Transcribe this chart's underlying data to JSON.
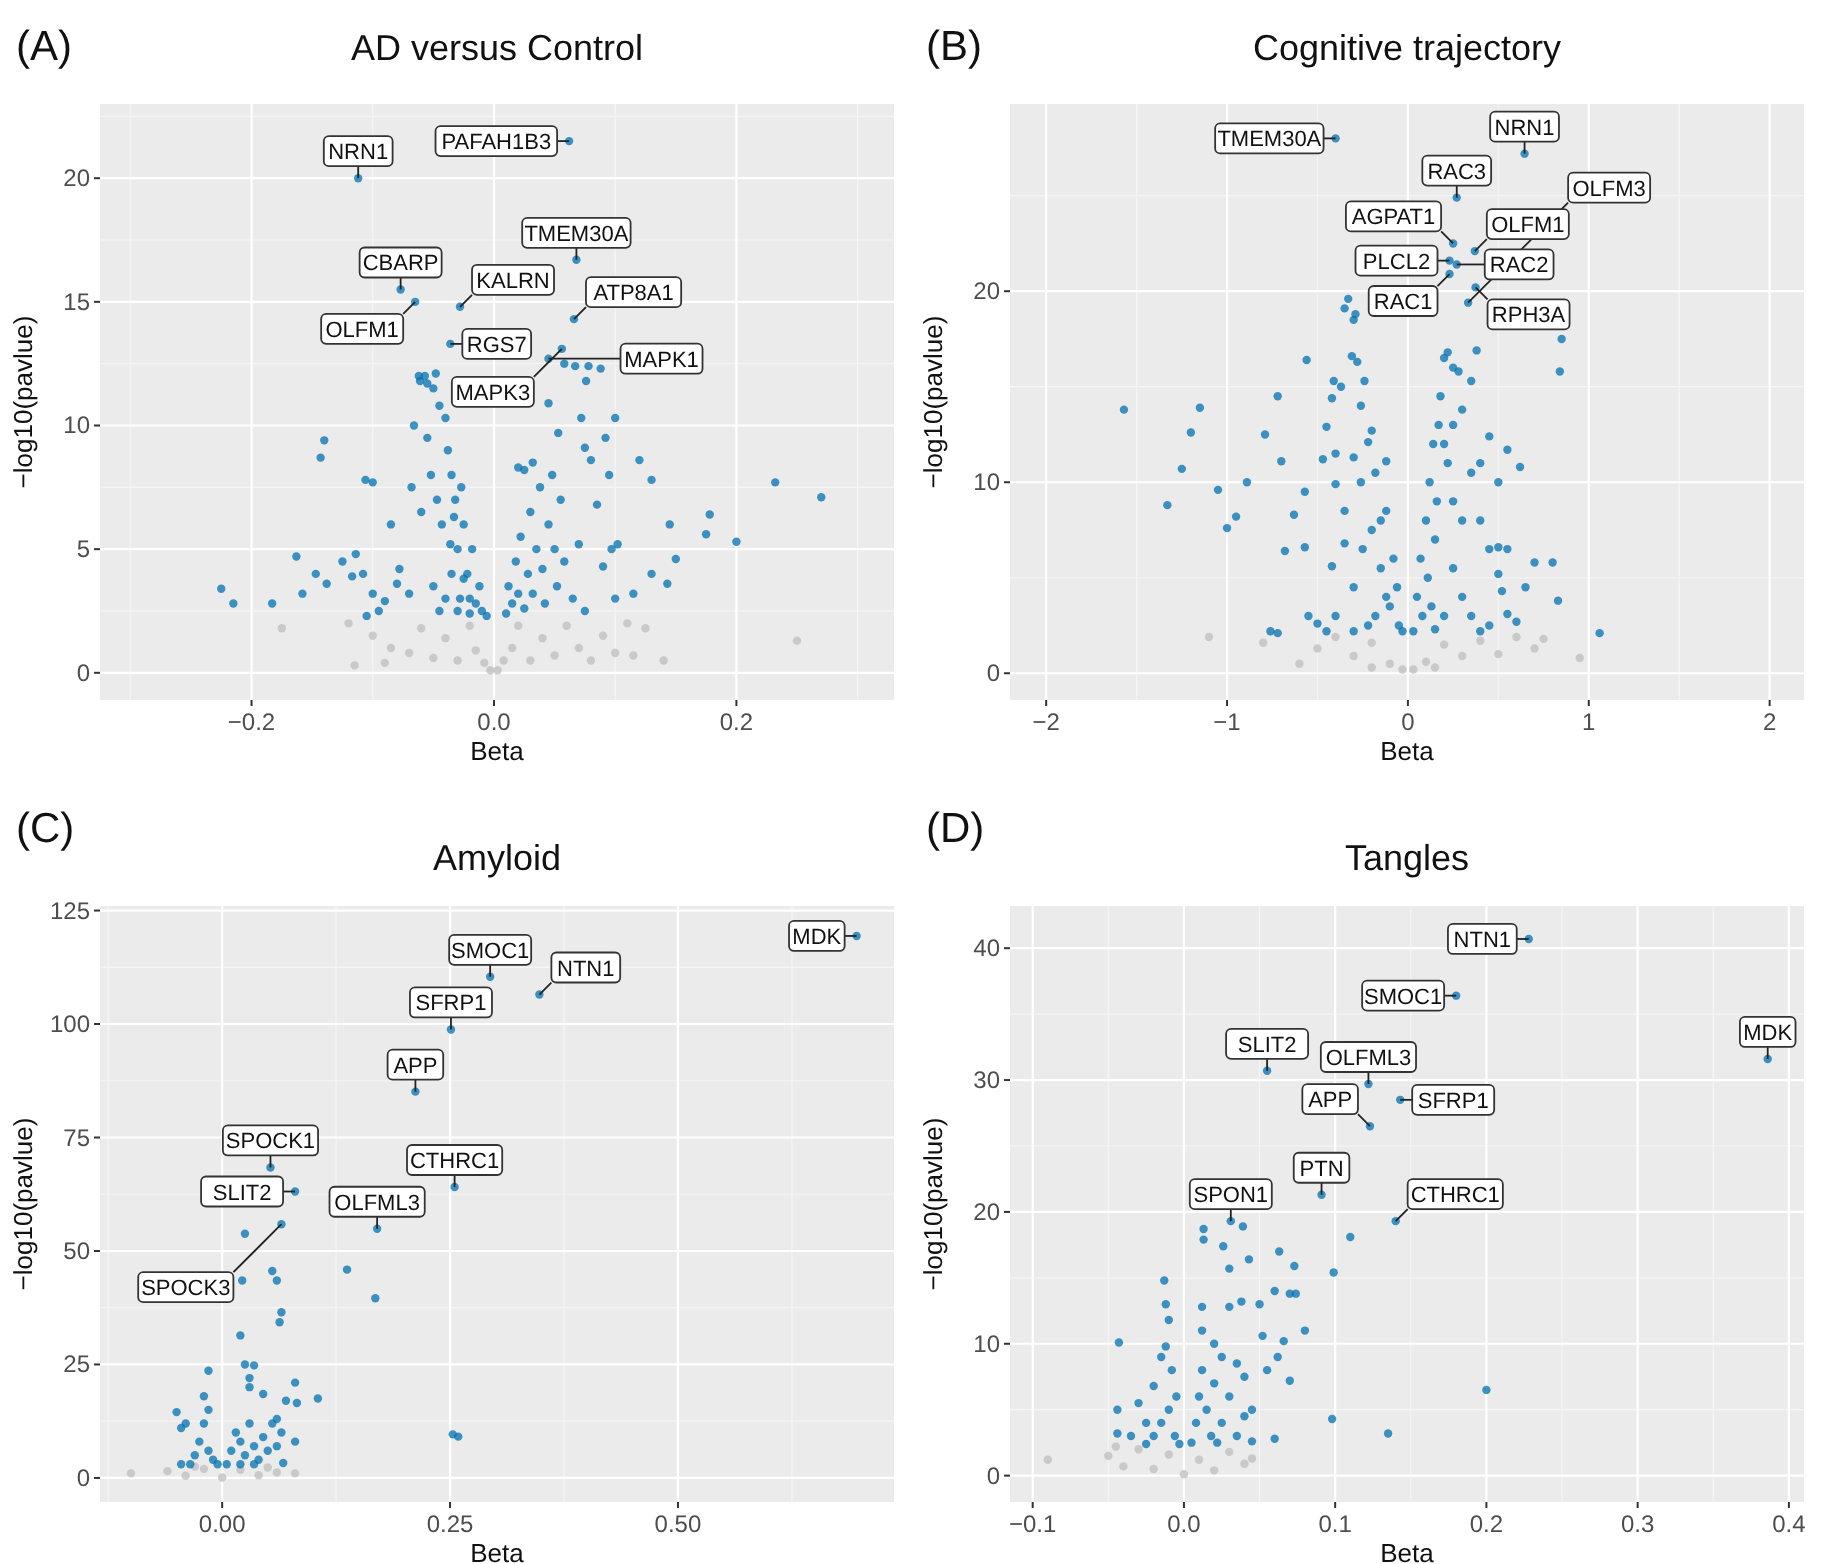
{
  "chart_data": [
    {
      "type": "scatter",
      "title": "AD versus Control",
      "xlabel": "Beta",
      "ylabel": "−log10(pavlue)",
      "grid": true,
      "marker": "circle",
      "xlim": [
        -0.325,
        0.33
      ],
      "ylim": [
        -1.1,
        23
      ],
      "xticks": [
        {
          "value": -0.2,
          "label": "−0.2"
        },
        {
          "value": 0,
          "label": "0.0"
        },
        {
          "value": 0.2,
          "label": "0.2"
        }
      ],
      "yticks": [
        0,
        5,
        10,
        15,
        20
      ],
      "annotations": [
        "(A)",
        {
          "text": "PAFAH1B3",
          "x": 0.062,
          "y": 21.5
        },
        {
          "text": "NRN1",
          "x": -0.112,
          "y": 20.0
        },
        {
          "text": "TMEM30A",
          "x": 0.068,
          "y": 16.7
        },
        {
          "text": "CBARP",
          "x": -0.077,
          "y": 15.5
        },
        {
          "text": "OLFM1",
          "x": -0.065,
          "y": 15.0
        },
        {
          "text": "KALRN",
          "x": -0.028,
          "y": 14.8
        },
        {
          "text": "ATP8A1",
          "x": 0.066,
          "y": 14.3
        },
        {
          "text": "RGS7",
          "x": -0.036,
          "y": 13.3
        },
        {
          "text": "MAPK3",
          "x": 0.056,
          "y": 13.1
        },
        {
          "text": "MAPK1",
          "x": 0.045,
          "y": 12.7
        }
      ],
      "series": [
        {
          "color": "#bebebe",
          "x": [
            -0.1,
            -0.085,
            -0.07,
            -0.06,
            -0.05,
            -0.04,
            -0.03,
            -0.02,
            -0.015,
            -0.008,
            -0.003,
            0.003,
            0.008,
            0.015,
            0.02,
            0.03,
            0.04,
            0.05,
            0.06,
            0.07,
            0.08,
            0.09,
            0.1,
            0.11,
            0.125,
            0.14,
            0.25,
            0.115,
            -0.12,
            -0.175,
            -0.115,
            -0.09
          ],
          "values": [
            1.5,
            1.0,
            0.8,
            1.8,
            0.6,
            1.4,
            0.5,
            1.9,
            0.9,
            0.4,
            0.1,
            0.1,
            0.5,
            1.0,
            1.9,
            0.5,
            1.4,
            0.7,
            1.9,
            1.0,
            0.5,
            1.5,
            0.8,
            2.0,
            1.8,
            0.5,
            1.3,
            0.7,
            2.0,
            1.8,
            0.3,
            0.4
          ]
        },
        {
          "color": "#0072b2",
          "x": [
            0.062,
            -0.112,
            0.068,
            -0.077,
            -0.065,
            -0.028,
            0.066,
            -0.036,
            0.056,
            0.045,
            -0.225,
            -0.215,
            -0.183,
            -0.163,
            -0.158,
            -0.147,
            -0.143,
            -0.14,
            -0.138,
            -0.125,
            -0.117,
            -0.114,
            -0.108,
            -0.106,
            -0.1,
            -0.105,
            -0.1,
            -0.095,
            -0.09,
            -0.085,
            -0.08,
            -0.078,
            -0.07,
            -0.068,
            -0.066,
            -0.062,
            -0.061,
            -0.057,
            -0.055,
            -0.05,
            -0.048,
            -0.06,
            -0.055,
            -0.052,
            -0.045,
            -0.04,
            -0.047,
            -0.043,
            -0.038,
            -0.035,
            -0.032,
            -0.03,
            -0.028,
            -0.025,
            -0.022,
            -0.02,
            -0.018,
            -0.015,
            -0.012,
            -0.01,
            -0.035,
            -0.04,
            -0.045,
            -0.05,
            -0.03,
            -0.025,
            -0.02,
            -0.027,
            -0.033,
            -0.036,
            -0.006,
            0.01,
            0.012,
            0.015,
            0.018,
            0.02,
            0.022,
            0.025,
            0.028,
            0.03,
            0.032,
            0.035,
            0.038,
            0.04,
            0.042,
            0.045,
            0.048,
            0.05,
            0.052,
            0.055,
            0.058,
            0.02,
            0.025,
            0.032,
            0.045,
            0.053,
            0.058,
            0.067,
            0.078,
            0.088,
            0.076,
            0.072,
            0.075,
            0.08,
            0.092,
            0.1,
            0.095,
            0.12,
            0.13,
            0.085,
            0.097,
            0.102,
            0.09,
            0.1,
            0.115,
            0.13,
            0.145,
            0.15,
            0.143,
            0.175,
            0.178,
            0.2,
            0.232,
            0.27,
            0.07,
            0.065,
            0.075
          ],
          "values": [
            21.5,
            20.0,
            16.7,
            15.5,
            15.0,
            14.8,
            14.3,
            13.3,
            13.1,
            12.7,
            3.4,
            2.8,
            2.8,
            4.7,
            3.2,
            4.0,
            8.7,
            9.4,
            3.6,
            4.5,
            3.9,
            4.8,
            4.0,
            7.8,
            7.7,
            2.3,
            3.2,
            2.5,
            2.9,
            6.0,
            3.6,
            4.2,
            3.2,
            7.5,
            10.0,
            12.0,
            11.8,
            12.0,
            11.7,
            11.5,
            12.1,
            6.5,
            9.5,
            8.0,
            10.8,
            10.3,
            7.0,
            6.0,
            9.0,
            8.0,
            7.0,
            5.0,
            3.0,
            6.0,
            4.0,
            3.0,
            5.0,
            2.8,
            3.5,
            2.5,
            4.0,
            3.0,
            2.5,
            3.5,
            2.5,
            3.8,
            2.4,
            7.5,
            6.3,
            5.2,
            2.3,
            2.4,
            3.5,
            2.8,
            4.5,
            3.2,
            5.5,
            2.6,
            4.0,
            6.5,
            3.2,
            5.0,
            7.5,
            4.2,
            2.8,
            6.0,
            8.0,
            5.0,
            3.5,
            7.0,
            4.5,
            8.3,
            8.2,
            8.5,
            10.9,
            9.7,
            12.5,
            12.4,
            12.4,
            12.3,
            11.8,
            10.3,
            9.1,
            8.6,
            9.5,
            10.3,
            8.0,
            8.6,
            7.8,
            6.8,
            5.0,
            5.2,
            4.3,
            3.0,
            3.2,
            4.0,
            6.0,
            4.6,
            3.6,
            5.6,
            6.4,
            5.3,
            7.7,
            7.1,
            5.2,
            3.0,
            2.5
          ]
        }
      ]
    },
    {
      "type": "scatter",
      "title": "Cognitive trajectory",
      "xlabel": "Beta",
      "ylabel": "−log10(pavlue)",
      "grid": true,
      "marker": "circle",
      "xlim": [
        -2.2,
        2.19
      ],
      "ylim": [
        -1.4,
        29.8
      ],
      "xticks": [
        {
          "value": -2,
          "label": "−2"
        },
        {
          "value": -1,
          "label": "−1"
        },
        0,
        1,
        2
      ],
      "yticks": [
        0,
        10,
        20
      ],
      "annotations": [
        "(B)",
        {
          "text": "TMEM30A",
          "x": -0.4,
          "y": 28.0
        },
        {
          "text": "NRN1",
          "x": 0.645,
          "y": 27.2
        },
        {
          "text": "RAC3",
          "x": 0.27,
          "y": 24.9
        },
        {
          "text": "AGPAT1",
          "x": 0.25,
          "y": 22.5
        },
        {
          "text": "OLFM1",
          "x": 0.37,
          "y": 22.1
        },
        {
          "text": "PLCL2",
          "x": 0.23,
          "y": 21.6
        },
        {
          "text": "RAC2",
          "x": 0.27,
          "y": 21.4
        },
        {
          "text": "RAC1",
          "x": 0.23,
          "y": 20.9
        },
        {
          "text": "RPH3A",
          "x": 0.374,
          "y": 20.2
        },
        {
          "text": "OLFM3",
          "x": 0.333,
          "y": 19.4
        }
      ],
      "series": [
        {
          "color": "#bebebe",
          "x": [
            -1.1,
            -0.8,
            -0.6,
            -0.5,
            -0.4,
            -0.3,
            -0.2,
            -0.1,
            -0.03,
            0.03,
            0.1,
            0.2,
            0.3,
            0.4,
            0.5,
            0.6,
            0.7,
            0.75,
            0.95,
            -0.2,
            0.15
          ],
          "values": [
            1.9,
            1.6,
            0.5,
            1.3,
            1.9,
            0.9,
            1.6,
            0.5,
            0.2,
            0.2,
            0.6,
            1.5,
            0.9,
            1.7,
            1.0,
            1.9,
            1.3,
            1.8,
            0.8,
            0.3,
            0.3
          ]
        },
        {
          "color": "#0072b2",
          "x": [
            -0.4,
            0.645,
            0.27,
            0.25,
            0.37,
            0.23,
            0.27,
            0.23,
            0.374,
            0.333,
            -1.57,
            -1.15,
            -1.2,
            -1.25,
            -1.33,
            -1.05,
            -1.0,
            -0.95,
            -0.89,
            -0.79,
            -0.72,
            -0.7,
            -0.56,
            -0.68,
            -0.57,
            -0.63,
            -0.57,
            -0.47,
            -0.45,
            -0.42,
            -0.41,
            -0.37,
            -0.35,
            -0.33,
            -0.3,
            -0.29,
            -0.31,
            -0.28,
            -0.24,
            -0.26,
            -0.2,
            -0.22,
            -0.12,
            -0.4,
            -0.3,
            -0.26,
            -0.18,
            -0.12,
            -0.4,
            -0.35,
            -0.42,
            -0.4,
            -0.5,
            -0.55,
            -0.72,
            -0.76,
            -0.45,
            -0.3,
            -0.25,
            -0.2,
            -0.15,
            -0.1,
            -0.05,
            -0.08,
            -0.12,
            -0.18,
            -0.22,
            -0.3,
            -0.35,
            -0.15,
            -0.06,
            -0.03,
            0.03,
            0.05,
            0.07,
            0.08,
            0.1,
            0.11,
            0.12,
            0.13,
            0.14,
            0.15,
            0.16,
            0.18,
            0.17,
            0.2,
            0.22,
            0.25,
            0.28,
            0.3,
            0.35,
            0.38,
            0.22,
            0.25,
            0.3,
            0.35,
            0.4,
            0.45,
            0.55,
            0.62,
            0.5,
            0.4,
            0.45,
            0.5,
            0.55,
            0.5,
            0.52,
            0.55,
            0.65,
            0.7,
            0.8,
            0.83,
            0.6,
            0.84,
            0.85,
            1.06,
            0.3,
            0.35,
            0.45,
            0.25,
            0.2,
            0.15,
            0.4,
            0.2,
            0.25
          ],
          "values": [
            28.0,
            27.2,
            24.9,
            22.5,
            22.1,
            21.6,
            21.4,
            20.9,
            20.2,
            19.4,
            13.8,
            13.9,
            12.6,
            10.7,
            8.8,
            9.6,
            7.6,
            8.2,
            10.0,
            12.5,
            14.5,
            11.1,
            16.4,
            6.4,
            6.6,
            8.3,
            9.5,
            11.2,
            12.9,
            14.4,
            15.3,
            15.0,
            19.1,
            19.6,
            18.5,
            18.8,
            16.6,
            16.3,
            15.3,
            14.0,
            12.7,
            12.1,
            11.1,
            11.5,
            11.3,
            10.0,
            10.5,
            8.5,
            9.9,
            8.5,
            5.6,
            3.0,
            2.6,
            3.0,
            2.1,
            2.2,
            2.2,
            4.5,
            6.5,
            7.5,
            5.5,
            3.5,
            2.5,
            6.0,
            4.0,
            3.0,
            2.5,
            2.2,
            6.8,
            8.0,
            4.5,
            2.2,
            2.2,
            4.0,
            6.0,
            3.0,
            8.0,
            5.0,
            10.0,
            3.5,
            12.0,
            7.0,
            9.0,
            14.5,
            13.0,
            16.5,
            16.8,
            16.0,
            15.8,
            13.8,
            15.3,
            16.9,
            11.0,
            9.0,
            8.0,
            10.5,
            11.0,
            12.4,
            11.7,
            10.8,
            10.0,
            8.0,
            6.5,
            6.6,
            6.5,
            5.2,
            4.3,
            3.1,
            4.5,
            5.8,
            5.8,
            3.8,
            2.7,
            15.8,
            17.5,
            2.1,
            4.0,
            3.0,
            2.5,
            5.5,
            3.0,
            2.3,
            2.2,
            12.0,
            13.0
          ]
        }
      ]
    },
    {
      "type": "scatter",
      "title": "Amyloid",
      "xlabel": "Beta",
      "ylabel": "−log10(pavlue)",
      "grid": true,
      "marker": "circle",
      "xlim": [
        -0.134,
        0.737
      ],
      "ylim": [
        -5.3,
        126
      ],
      "xticks": [
        {
          "value": 0,
          "label": "0.00"
        },
        {
          "value": 0.25,
          "label": "0.25"
        },
        {
          "value": 0.5,
          "label": "0.50"
        }
      ],
      "yticks": [
        0,
        25,
        50,
        75,
        100,
        125
      ],
      "annotations": [
        "(C)",
        {
          "text": "MDK",
          "x": 0.696,
          "y": 119.4
        },
        {
          "text": "SMOC1",
          "x": 0.294,
          "y": 110.4
        },
        {
          "text": "NTN1",
          "x": 0.348,
          "y": 106.5
        },
        {
          "text": "SFRP1",
          "x": 0.251,
          "y": 98.8
        },
        {
          "text": "APP",
          "x": 0.212,
          "y": 85.1
        },
        {
          "text": "SPOCK1",
          "x": 0.053,
          "y": 68.4
        },
        {
          "text": "CTHRC1",
          "x": 0.255,
          "y": 64.1
        },
        {
          "text": "SLIT2",
          "x": 0.08,
          "y": 63.1
        },
        {
          "text": "SPOCK3",
          "x": 0.065,
          "y": 55.9
        },
        {
          "text": "OLFML3",
          "x": 0.17,
          "y": 54.9
        }
      ],
      "series": [
        {
          "color": "#bebebe",
          "x": [
            -0.1,
            -0.06,
            -0.04,
            -0.02,
            0,
            0.02,
            0.04,
            0.06,
            0.08,
            -0.03,
            0.05
          ],
          "values": [
            1.0,
            1.5,
            0.5,
            2.0,
            0.1,
            1.8,
            0.6,
            1.2,
            1.0,
            2.5,
            2.3
          ]
        },
        {
          "color": "#0072b2",
          "x": [
            0.696,
            0.294,
            0.348,
            0.251,
            0.212,
            0.053,
            0.255,
            0.08,
            0.065,
            0.17,
            0.025,
            0.055,
            0.06,
            0.022,
            0.065,
            0.063,
            0.137,
            0.168,
            0.02,
            0.025,
            0.03,
            0.035,
            -0.015,
            0.03,
            0.045,
            0.07,
            0.08,
            0.082,
            0.105,
            0.06,
            0.065,
            0.08,
            0.067,
            0.253,
            0.259,
            -0.05,
            -0.045,
            -0.04,
            -0.02,
            -0.015,
            -0.03,
            -0.025,
            -0.02,
            -0.015,
            -0.01,
            -0.005,
            -0.035,
            -0.045,
            0.005,
            0.01,
            0.015,
            0.02,
            0.025,
            0.03,
            0.035,
            0.04,
            0.045,
            0.05,
            0.055,
            0.06,
            0.02,
            0.035
          ],
          "values": [
            119.4,
            110.4,
            106.5,
            98.8,
            85.1,
            68.4,
            64.1,
            63.1,
            55.9,
            54.9,
            53.8,
            45.6,
            43.5,
            43.5,
            36.5,
            34.3,
            45.9,
            39.6,
            31.4,
            25,
            22,
            24.8,
            23.6,
            20,
            18.5,
            17,
            21,
            16.5,
            17.5,
            13,
            10,
            8,
            3.3,
            9.6,
            9.1,
            14.5,
            11,
            12,
            18,
            15,
            5,
            8,
            12,
            6,
            4,
            3,
            3,
            3,
            3,
            6,
            10,
            8,
            5,
            12,
            7,
            4,
            9,
            6,
            12,
            7,
            3,
            3
          ]
        }
      ]
    },
    {
      "type": "scatter",
      "title": "Tangles",
      "xlabel": "Beta",
      "ylabel": "−log10(pavlue)",
      "grid": true,
      "marker": "circle",
      "xlim": [
        -0.115,
        0.41
      ],
      "ylim": [
        -2,
        43.2
      ],
      "xticks": [
        {
          "value": -0.1,
          "label": "−0.1"
        },
        {
          "value": 0,
          "label": "0.0"
        },
        0.1,
        0.2,
        0.3,
        0.4
      ],
      "yticks": [
        0,
        10,
        20,
        30,
        40
      ],
      "annotations": [
        "(D)",
        {
          "text": "NTN1",
          "x": 0.228,
          "y": 40.7
        },
        {
          "text": "SMOC1",
          "x": 0.18,
          "y": 36.4
        },
        {
          "text": "MDK",
          "x": 0.386,
          "y": 31.6
        },
        {
          "text": "SLIT2",
          "x": 0.055,
          "y": 30.7
        },
        {
          "text": "OLFML3",
          "x": 0.122,
          "y": 29.7
        },
        {
          "text": "SFRP1",
          "x": 0.143,
          "y": 28.5
        },
        {
          "text": "APP",
          "x": 0.123,
          "y": 26.5
        },
        {
          "text": "PTN",
          "x": 0.091,
          "y": 21.3
        },
        {
          "text": "SPON1",
          "x": 0.031,
          "y": 19.3
        },
        {
          "text": "CTHRC1",
          "x": 0.14,
          "y": 19.3
        }
      ],
      "series": [
        {
          "color": "#bebebe",
          "x": [
            -0.09,
            -0.05,
            -0.04,
            -0.03,
            -0.02,
            -0.01,
            0,
            0.01,
            0.02,
            0.03,
            0.04,
            0.045,
            -0.045
          ],
          "values": [
            1.2,
            1.5,
            0.7,
            2.0,
            0.5,
            1.6,
            0.1,
            1.2,
            0.4,
            1.8,
            0.9,
            1.3,
            2.2
          ]
        },
        {
          "color": "#0072b2",
          "x": [
            0.228,
            0.18,
            0.386,
            0.055,
            0.122,
            0.143,
            0.123,
            0.091,
            0.031,
            0.14,
            0.039,
            0.013,
            0.013,
            0.026,
            0.043,
            0.03,
            0.063,
            0.073,
            0.099,
            0.11,
            0.06,
            0.07,
            0.074,
            0.05,
            0.038,
            0.03,
            0.012,
            0.08,
            0.066,
            0.052,
            0.062,
            0.07,
            0.055,
            0.04,
            0.02,
            0.025,
            0.035,
            0.045,
            0.06,
            0.098,
            0.135,
            0.2,
            -0.043,
            -0.044,
            -0.044,
            -0.03,
            -0.025,
            -0.02,
            -0.013,
            -0.012,
            -0.01,
            -0.012,
            -0.015,
            -0.008,
            -0.005,
            -0.01,
            -0.015,
            -0.02,
            -0.006,
            -0.003,
            0.005,
            0.008,
            0.01,
            0.012,
            0.015,
            0.018,
            0.02,
            0.025,
            0.03,
            0.035,
            0.04,
            0.022,
            0.012,
            -0.025,
            -0.035,
            0.045
          ],
          "values": [
            40.7,
            36.4,
            31.6,
            30.7,
            29.7,
            28.5,
            26.5,
            21.3,
            19.3,
            19.3,
            18.9,
            18.7,
            17.9,
            17.4,
            16.4,
            15.7,
            17,
            15.9,
            15.4,
            18.1,
            14,
            13.8,
            13.8,
            13,
            13.2,
            12.8,
            12.8,
            11,
            10.2,
            10.6,
            9,
            7.2,
            8,
            7.5,
            10,
            9,
            8.5,
            5,
            2.8,
            4.3,
            3.2,
            6.5,
            10.1,
            5.0,
            3.2,
            5.5,
            4,
            6.8,
            14.8,
            13,
            11.8,
            9.8,
            9,
            8,
            6,
            5,
            4,
            3,
            3,
            2.4,
            2.5,
            4,
            6,
            8,
            5,
            3,
            7,
            4,
            6,
            3,
            4.5,
            2.5,
            11,
            2.4,
            3,
            2.6
          ]
        }
      ]
    }
  ]
}
